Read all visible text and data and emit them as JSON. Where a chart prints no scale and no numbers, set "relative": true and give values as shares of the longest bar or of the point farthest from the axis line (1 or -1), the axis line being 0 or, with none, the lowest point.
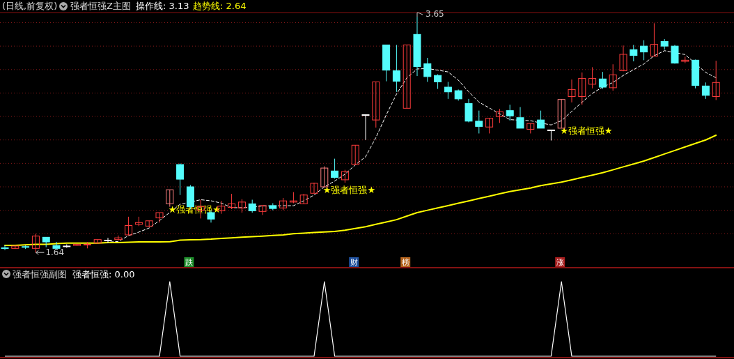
{
  "chart_data": [
    {
      "type": "candlestick",
      "title": "(日线,前复权)",
      "subtitle": "强者恒强Z主图",
      "categories": [
        null,
        null,
        null,
        null,
        null,
        null,
        null,
        null,
        null,
        null,
        null,
        null,
        null,
        null,
        null,
        null,
        null,
        null,
        null,
        null,
        null,
        null,
        null,
        null,
        null,
        null,
        null,
        null,
        null,
        null,
        null,
        null,
        null,
        null,
        null,
        null,
        null,
        null,
        null,
        null,
        null,
        null,
        null,
        null,
        null,
        null,
        null,
        null,
        null,
        null,
        null,
        null,
        null,
        null,
        null,
        null,
        null,
        null,
        null,
        null,
        null,
        null,
        null,
        null,
        null,
        null,
        null,
        null,
        null,
        null
      ],
      "ohlc": [
        [
          1.68,
          1.7,
          1.66,
          1.675
        ],
        [
          1.675,
          1.7,
          1.67,
          1.695
        ],
        [
          1.69,
          1.7,
          1.67,
          1.685
        ],
        [
          1.675,
          1.8,
          1.64,
          1.78
        ],
        [
          1.77,
          1.77,
          1.685,
          1.73
        ],
        [
          1.7,
          1.73,
          1.665,
          1.675
        ],
        [
          1.695,
          1.71,
          1.68,
          1.695
        ],
        [
          1.7,
          1.71,
          1.7,
          1.71
        ],
        [
          1.705,
          1.73,
          1.675,
          1.71
        ],
        [
          1.72,
          1.75,
          1.715,
          1.75
        ],
        [
          1.745,
          1.765,
          1.72,
          1.745
        ],
        [
          1.75,
          1.785,
          1.745,
          1.765
        ],
        [
          1.79,
          1.945,
          1.79,
          1.87
        ],
        [
          1.88,
          1.945,
          1.865,
          1.895
        ],
        [
          1.865,
          1.91,
          1.855,
          1.91
        ],
        [
          1.935,
          1.98,
          1.895,
          1.98
        ],
        [
          2.055,
          2.175,
          2.03,
          2.175
        ],
        [
          2.39,
          2.4,
          2.13,
          2.265
        ],
        [
          2.2,
          2.215,
          2.01,
          2.03
        ],
        [
          2.0,
          2.09,
          1.93,
          2.03
        ],
        [
          1.98,
          2.0,
          1.895,
          1.925
        ],
        [
          1.995,
          2.08,
          1.97,
          2.035
        ],
        [
          2.025,
          2.14,
          2.01,
          2.055
        ],
        [
          2.02,
          2.095,
          1.98,
          2.07
        ],
        [
          2.055,
          2.09,
          1.98,
          1.995
        ],
        [
          1.99,
          2.045,
          1.96,
          2.04
        ],
        [
          2.04,
          2.06,
          2.0,
          2.015
        ],
        [
          2.02,
          2.105,
          2.0,
          2.08
        ],
        [
          2.07,
          2.155,
          2.06,
          2.08
        ],
        [
          2.055,
          2.14,
          2.055,
          2.13
        ],
        [
          2.145,
          2.235,
          2.145,
          2.23
        ],
        [
          2.2,
          2.375,
          2.195,
          2.36
        ],
        [
          2.335,
          2.44,
          2.27,
          2.28
        ],
        [
          2.26,
          2.345,
          2.235,
          2.33
        ],
        [
          2.39,
          2.555,
          2.385,
          2.555
        ],
        [
          2.815,
          2.815,
          2.6,
          2.815
        ],
        [
          2.77,
          3.095,
          2.705,
          3.095
        ],
        [
          3.41,
          3.41,
          3.1,
          3.195
        ],
        [
          3.19,
          3.41,
          3.01,
          3.1
        ],
        [
          2.87,
          3.41,
          2.87,
          3.41
        ],
        [
          3.5,
          3.65,
          3.145,
          3.225
        ],
        [
          3.25,
          3.3,
          3.095,
          3.14
        ],
        [
          3.15,
          3.16,
          3.035,
          3.095
        ],
        [
          3.05,
          3.095,
          2.95,
          3.01
        ],
        [
          3.02,
          3.03,
          2.935,
          2.95
        ],
        [
          2.91,
          2.95,
          2.75,
          2.76
        ],
        [
          2.76,
          2.85,
          2.655,
          2.715
        ],
        [
          2.71,
          2.785,
          2.655,
          2.785
        ],
        [
          2.8,
          2.865,
          2.745,
          2.84
        ],
        [
          2.85,
          2.9,
          2.765,
          2.805
        ],
        [
          2.79,
          2.88,
          2.7,
          2.7
        ],
        [
          2.69,
          2.74,
          2.655,
          2.74
        ],
        [
          2.77,
          2.85,
          2.7,
          2.7
        ],
        [
          2.685,
          2.685,
          2.595,
          2.685
        ],
        [
          2.7,
          2.945,
          2.7,
          2.945
        ],
        [
          2.97,
          3.115,
          2.92,
          3.03
        ],
        [
          2.97,
          3.175,
          2.9,
          3.125
        ],
        [
          3.075,
          3.22,
          3.04,
          3.125
        ],
        [
          3.12,
          3.18,
          3.035,
          3.05
        ],
        [
          3.045,
          3.245,
          3.02,
          3.155
        ],
        [
          3.19,
          3.405,
          3.185,
          3.33
        ],
        [
          3.37,
          3.41,
          3.27,
          3.32
        ],
        [
          3.4,
          3.45,
          3.28,
          3.35
        ],
        [
          3.315,
          3.595,
          3.315,
          3.415
        ],
        [
          3.44,
          3.46,
          3.37,
          3.4
        ],
        [
          3.4,
          3.41,
          3.25,
          3.255
        ],
        [
          3.27,
          3.31,
          3.255,
          3.28
        ],
        [
          3.28,
          3.285,
          3.04,
          3.065
        ],
        [
          3.06,
          3.09,
          2.95,
          2.98
        ],
        [
          2.97,
          3.275,
          2.94,
          3.09
        ]
      ],
      "colors": [
        "#54fcfc",
        "#ff3c3c",
        "#54fcfc",
        "#ff3c3c",
        "#54fcfc",
        "#54fcfc",
        "#ffffff",
        "#ff3c3c",
        "#ff3c3c",
        "#ff3c3c",
        "#ffffff",
        "#ff3c3c",
        "#ff3c3c",
        "#ff3c3c",
        "#ff3c3c",
        "#ff3c3c",
        "#ff8080",
        "#54fcfc",
        "#54fcfc",
        "#ff3c3c",
        "#54fcfc",
        "#ff3c3c",
        "#ff3c3c",
        "#ff3c3c",
        "#54fcfc",
        "#ff3c3c",
        "#54fcfc",
        "#ff3c3c",
        "#ff3c3c",
        "#ff3c3c",
        "#ff3c3c",
        "#ff8080",
        "#54fcfc",
        "#ff3c3c",
        "#ff3c3c",
        "#ffffff",
        "#ff3c3c",
        "#54fcfc",
        "#54fcfc",
        "#ff3c3c",
        "#54fcfc",
        "#54fcfc",
        "#54fcfc",
        "#54fcfc",
        "#54fcfc",
        "#54fcfc",
        "#54fcfc",
        "#ff3c3c",
        "#ff3c3c",
        "#54fcfc",
        "#54fcfc",
        "#ff3c3c",
        "#54fcfc",
        "#ffffff",
        "#ff8080",
        "#ff3c3c",
        "#ff3c3c",
        "#ff3c3c",
        "#54fcfc",
        "#ff3c3c",
        "#ff3c3c",
        "#54fcfc",
        "#54fcfc",
        "#ff3c3c",
        "#54fcfc",
        "#54fcfc",
        "#ff3c3c",
        "#54fcfc",
        "#54fcfc",
        "#ff3c3c"
      ],
      "series": [
        {
          "name": "操作线: 3.13",
          "type": "line",
          "color": "#ffffff",
          "line_style": "dashed",
          "values": [
            null,
            null,
            null,
            null,
            null,
            null,
            null,
            null,
            null,
            null,
            1.728,
            1.734,
            1.784,
            1.814,
            1.849,
            1.912,
            1.982,
            2.051,
            null,
            2.09,
            2.081,
            2.061,
            2.022,
            2.022,
            2.025,
            2.037,
            2.037,
            2.039,
            2.039,
            2.081,
            2.13,
            2.2,
            2.249,
            2.308,
            2.387,
            2.457,
            2.62,
            2.813,
            2.991,
            3.13,
            3.205,
            3.209,
            3.195,
            3.18,
            3.11,
            3.011,
            2.922,
            2.873,
            2.823,
            2.773,
            2.768,
            2.764,
            2.744,
            2.728,
            2.764,
            2.843,
            2.922,
            2.997,
            3.051,
            3.09,
            3.15,
            3.199,
            3.248,
            3.318,
            3.361,
            null,
            3.328,
            null,
            3.175,
            3.13
          ]
        },
        {
          "name": "趋势线: 2.64",
          "type": "line",
          "color": "#ffff00",
          "values": [
            1.7,
            1.7,
            1.705,
            1.71,
            1.71,
            1.715,
            1.72,
            1.72,
            1.72,
            1.72,
            1.725,
            1.725,
            1.728,
            1.73,
            1.73,
            1.73,
            1.732,
            1.745,
            1.748,
            1.75,
            1.754,
            1.76,
            1.765,
            1.77,
            1.775,
            1.78,
            1.785,
            1.79,
            1.8,
            1.805,
            1.81,
            1.815,
            1.82,
            1.83,
            1.845,
            1.86,
            1.88,
            1.9,
            1.92,
            1.95,
            1.98,
            2.0,
            2.02,
            2.04,
            2.06,
            2.08,
            2.1,
            2.12,
            2.14,
            2.16,
            2.175,
            2.19,
            2.21,
            2.225,
            2.24,
            2.26,
            2.28,
            2.3,
            2.32,
            2.345,
            2.37,
            2.395,
            2.42,
            2.45,
            2.48,
            2.51,
            2.54,
            2.57,
            2.6,
            2.64
          ]
        }
      ],
      "yticks": [
        {
          "value": 1.8,
          "label": null
        },
        {
          "value": 2.0,
          "label": null
        },
        {
          "value": 2.2,
          "label": null
        },
        {
          "value": 2.4,
          "label": null
        },
        {
          "value": 2.6,
          "label": null
        },
        {
          "value": 2.8,
          "label": null
        },
        {
          "value": 3.0,
          "label": null
        },
        {
          "value": 3.2,
          "label": null
        },
        {
          "value": 3.4,
          "label": null
        },
        {
          "value": 3.6,
          "label": null
        }
      ],
      "grid": "y",
      "annotations": [
        "3.65",
        "1.64",
        "★强者恒强★",
        "★强者恒强★",
        "★强者恒强★",
        "跌",
        "财",
        "榜",
        "涨"
      ]
    },
    {
      "type": "line",
      "title": "强者恒强副图",
      "relative": true,
      "categories": [
        null,
        null,
        null,
        null,
        null,
        null,
        null,
        null,
        null,
        null,
        null,
        null,
        null,
        null,
        null,
        null,
        null,
        null,
        null,
        null,
        null,
        null,
        null,
        null,
        null,
        null,
        null,
        null,
        null,
        null,
        null,
        null,
        null,
        null,
        null,
        null,
        null,
        null,
        null,
        null,
        null,
        null,
        null,
        null,
        null,
        null,
        null,
        null,
        null,
        null,
        null,
        null,
        null,
        null,
        null,
        null,
        null,
        null,
        null,
        null,
        null,
        null,
        null,
        null,
        null,
        null,
        null,
        null,
        null,
        null
      ],
      "series": [
        {
          "color": "#ffffff",
          "values": [
            0,
            0,
            0,
            0,
            0,
            0,
            0,
            0,
            0,
            0,
            0,
            0,
            0,
            0,
            0,
            0,
            1,
            0,
            0,
            0,
            0,
            0,
            0,
            0,
            0,
            0,
            0,
            0,
            0,
            0,
            0,
            1,
            0,
            0,
            0,
            0,
            0,
            0,
            0,
            0,
            0,
            0,
            0,
            0,
            0,
            0,
            0,
            0,
            0,
            0,
            0,
            0,
            0,
            0,
            1,
            0,
            0,
            0,
            0,
            0,
            0,
            0,
            0,
            0,
            0,
            0,
            0,
            0,
            0,
            0
          ]
        }
      ],
      "annotations": [
        "强者恒强: 0.00"
      ]
    }
  ]
}
